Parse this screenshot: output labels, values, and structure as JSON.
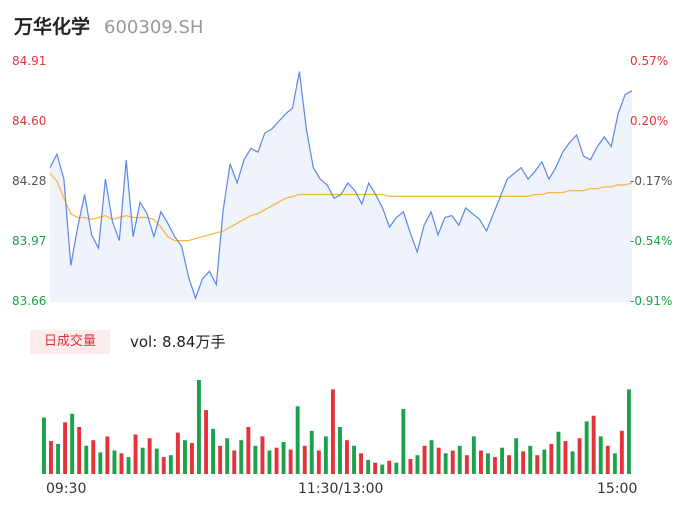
{
  "header": {
    "name": "万华化学",
    "code": "600309.SH"
  },
  "price_axis": {
    "labels": [
      "84.91",
      "84.60",
      "84.28",
      "83.97",
      "83.66"
    ]
  },
  "pct_axis": {
    "labels": [
      "0.57%",
      "0.20%",
      "-0.17%",
      "-0.54%",
      "-0.91%"
    ]
  },
  "volume": {
    "tab_label": "日成交量",
    "value_text": "vol: 8.84万手"
  },
  "time_axis": {
    "labels": [
      "09:30",
      "11:30/13:00",
      "15:00"
    ]
  },
  "colors": {
    "price_line": "#5b87e6",
    "avg_line": "#f5b63a",
    "up": "#e5323b",
    "down": "#1aa34a",
    "area": "#eef3fc"
  },
  "chart_data": {
    "type": "line",
    "y_range": [
      83.66,
      84.91
    ],
    "x_ticks": [
      "09:30",
      "11:30/13:00",
      "15:00"
    ],
    "price_series": [
      84.36,
      84.43,
      84.3,
      83.85,
      84.05,
      84.22,
      84.01,
      83.94,
      84.3,
      84.08,
      83.98,
      84.4,
      84.0,
      84.18,
      84.12,
      84.0,
      84.13,
      84.07,
      84.0,
      83.95,
      83.79,
      83.68,
      83.78,
      83.82,
      83.75,
      84.14,
      84.38,
      84.28,
      84.4,
      84.46,
      84.44,
      84.54,
      84.56,
      84.6,
      84.64,
      84.67,
      84.86,
      84.56,
      84.36,
      84.3,
      84.27,
      84.2,
      84.22,
      84.28,
      84.24,
      84.17,
      84.28,
      84.22,
      84.15,
      84.05,
      84.1,
      84.13,
      84.02,
      83.92,
      84.06,
      84.13,
      84.01,
      84.1,
      84.11,
      84.06,
      84.15,
      84.12,
      84.09,
      84.03,
      84.12,
      84.21,
      84.3,
      84.33,
      84.36,
      84.3,
      84.34,
      84.39,
      84.3,
      84.36,
      84.44,
      84.49,
      84.53,
      84.42,
      84.4,
      84.47,
      84.52,
      84.47,
      84.64,
      84.74,
      84.76
    ],
    "avg_series": [
      84.33,
      84.29,
      84.2,
      84.12,
      84.1,
      84.1,
      84.09,
      84.1,
      84.11,
      84.09,
      84.1,
      84.11,
      84.1,
      84.1,
      84.1,
      84.09,
      84.05,
      84.0,
      83.98,
      83.98,
      83.98,
      83.99,
      84.0,
      84.01,
      84.02,
      84.03,
      84.05,
      84.07,
      84.09,
      84.11,
      84.12,
      84.14,
      84.16,
      84.18,
      84.2,
      84.21,
      84.22,
      84.22,
      84.22,
      84.22,
      84.22,
      84.22,
      84.22,
      84.22,
      84.22,
      84.22,
      84.22,
      84.22,
      84.22,
      84.21,
      84.21,
      84.21,
      84.21,
      84.21,
      84.21,
      84.21,
      84.21,
      84.21,
      84.21,
      84.21,
      84.21,
      84.21,
      84.21,
      84.21,
      84.21,
      84.21,
      84.21,
      84.21,
      84.21,
      84.21,
      84.22,
      84.22,
      84.23,
      84.23,
      84.23,
      84.24,
      84.24,
      84.24,
      84.25,
      84.25,
      84.26,
      84.26,
      84.27,
      84.27,
      84.28
    ],
    "volume_bars": [
      {
        "v": 0.6,
        "up": false
      },
      {
        "v": 0.35,
        "up": true
      },
      {
        "v": 0.32,
        "up": false
      },
      {
        "v": 0.55,
        "up": true
      },
      {
        "v": 0.64,
        "up": false
      },
      {
        "v": 0.5,
        "up": true
      },
      {
        "v": 0.3,
        "up": false
      },
      {
        "v": 0.36,
        "up": true
      },
      {
        "v": 0.23,
        "up": false
      },
      {
        "v": 0.4,
        "up": true
      },
      {
        "v": 0.25,
        "up": false
      },
      {
        "v": 0.22,
        "up": true
      },
      {
        "v": 0.18,
        "up": false
      },
      {
        "v": 0.42,
        "up": true
      },
      {
        "v": 0.28,
        "up": false
      },
      {
        "v": 0.38,
        "up": true
      },
      {
        "v": 0.27,
        "up": false
      },
      {
        "v": 0.18,
        "up": true
      },
      {
        "v": 0.2,
        "up": false
      },
      {
        "v": 0.44,
        "up": true
      },
      {
        "v": 0.36,
        "up": false
      },
      {
        "v": 0.33,
        "up": true
      },
      {
        "v": 1.0,
        "up": false
      },
      {
        "v": 0.68,
        "up": true
      },
      {
        "v": 0.48,
        "up": false
      },
      {
        "v": 0.3,
        "up": true
      },
      {
        "v": 0.38,
        "up": false
      },
      {
        "v": 0.25,
        "up": true
      },
      {
        "v": 0.36,
        "up": false
      },
      {
        "v": 0.5,
        "up": true
      },
      {
        "v": 0.3,
        "up": false
      },
      {
        "v": 0.4,
        "up": true
      },
      {
        "v": 0.25,
        "up": false
      },
      {
        "v": 0.28,
        "up": true
      },
      {
        "v": 0.34,
        "up": false
      },
      {
        "v": 0.26,
        "up": true
      },
      {
        "v": 0.72,
        "up": false
      },
      {
        "v": 0.3,
        "up": true
      },
      {
        "v": 0.46,
        "up": false
      },
      {
        "v": 0.25,
        "up": true
      },
      {
        "v": 0.4,
        "up": false
      },
      {
        "v": 0.9,
        "up": true
      },
      {
        "v": 0.5,
        "up": false
      },
      {
        "v": 0.36,
        "up": true
      },
      {
        "v": 0.3,
        "up": false
      },
      {
        "v": 0.22,
        "up": true
      },
      {
        "v": 0.15,
        "up": false
      },
      {
        "v": 0.12,
        "up": true
      },
      {
        "v": 0.1,
        "up": false
      },
      {
        "v": 0.14,
        "up": true
      },
      {
        "v": 0.12,
        "up": false
      },
      {
        "v": 0.69,
        "up": false
      },
      {
        "v": 0.16,
        "up": true
      },
      {
        "v": 0.2,
        "up": false
      },
      {
        "v": 0.3,
        "up": true
      },
      {
        "v": 0.36,
        "up": false
      },
      {
        "v": 0.28,
        "up": true
      },
      {
        "v": 0.22,
        "up": false
      },
      {
        "v": 0.25,
        "up": true
      },
      {
        "v": 0.3,
        "up": false
      },
      {
        "v": 0.2,
        "up": true
      },
      {
        "v": 0.4,
        "up": false
      },
      {
        "v": 0.25,
        "up": true
      },
      {
        "v": 0.22,
        "up": false
      },
      {
        "v": 0.18,
        "up": true
      },
      {
        "v": 0.28,
        "up": false
      },
      {
        "v": 0.2,
        "up": true
      },
      {
        "v": 0.38,
        "up": false
      },
      {
        "v": 0.24,
        "up": true
      },
      {
        "v": 0.3,
        "up": false
      },
      {
        "v": 0.2,
        "up": true
      },
      {
        "v": 0.26,
        "up": false
      },
      {
        "v": 0.32,
        "up": true
      },
      {
        "v": 0.45,
        "up": false
      },
      {
        "v": 0.35,
        "up": true
      },
      {
        "v": 0.24,
        "up": false
      },
      {
        "v": 0.38,
        "up": true
      },
      {
        "v": 0.56,
        "up": false
      },
      {
        "v": 0.62,
        "up": true
      },
      {
        "v": 0.4,
        "up": false
      },
      {
        "v": 0.3,
        "up": true
      },
      {
        "v": 0.22,
        "up": false
      },
      {
        "v": 0.46,
        "up": true
      },
      {
        "v": 0.9,
        "up": false
      }
    ]
  }
}
